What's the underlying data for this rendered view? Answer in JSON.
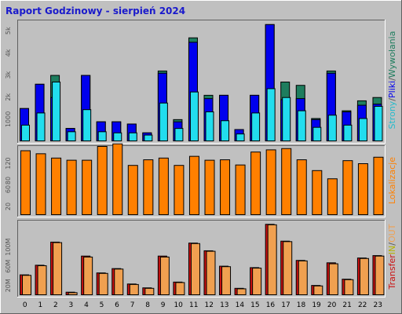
{
  "window": {
    "title": "Raport Godzinowy -   sierpień 2024"
  },
  "colors": {
    "background": "#c0c0c0",
    "hits": "#1e7d5e",
    "files": "#0000ee",
    "pages": "#22ddee",
    "visits": "#ff8000",
    "kbin": "#cc1111",
    "kbout": "#f0a050",
    "side_sep": "#555555"
  },
  "chart_data": [
    {
      "type": "bar",
      "name": "strony-pliki-wywolania",
      "categories": [
        "0",
        "1",
        "2",
        "3",
        "4",
        "5",
        "6",
        "7",
        "8",
        "9",
        "10",
        "11",
        "12",
        "13",
        "14",
        "15",
        "16",
        "17",
        "18",
        "19",
        "20",
        "21",
        "22",
        "23"
      ],
      "ylim": [
        0,
        5400
      ],
      "y_ticks": [
        "1000",
        "2k",
        "3k",
        "4k",
        "5k"
      ],
      "y_tick_values": [
        1000,
        2000,
        3000,
        4000,
        5000
      ],
      "side_label": [
        {
          "text": "Strony",
          "color": "#22bbcc"
        },
        {
          "text": "/",
          "color": "#555555"
        },
        {
          "text": "Pliki",
          "color": "#0000ee"
        },
        {
          "text": "/",
          "color": "#555555"
        },
        {
          "text": "Wywołania",
          "color": "#1e7d5e"
        }
      ],
      "series": [
        {
          "key": "hits",
          "values": [
            1500,
            2600,
            3000,
            600,
            3000,
            900,
            900,
            800,
            400,
            3200,
            1000,
            4700,
            2100,
            2100,
            550,
            2100,
            5300,
            2700,
            2550,
            1050,
            3200,
            1400,
            1850,
            2000
          ]
        },
        {
          "key": "files",
          "values": [
            1500,
            2600,
            2000,
            600,
            3000,
            900,
            900,
            800,
            400,
            3100,
            900,
            4500,
            1950,
            2100,
            550,
            2100,
            5300,
            1900,
            1950,
            1000,
            3100,
            1350,
            1650,
            1700
          ]
        },
        {
          "key": "pages",
          "values": [
            750,
            1300,
            2700,
            450,
            1450,
            450,
            400,
            400,
            300,
            1750,
            600,
            2250,
            1350,
            950,
            350,
            1300,
            2400,
            2000,
            1400,
            650,
            1200,
            750,
            1050,
            1600
          ]
        }
      ]
    },
    {
      "type": "bar",
      "name": "lokalizacje",
      "categories": [
        "0",
        "1",
        "2",
        "3",
        "4",
        "5",
        "6",
        "7",
        "8",
        "9",
        "10",
        "11",
        "12",
        "13",
        "14",
        "15",
        "16",
        "17",
        "18",
        "19",
        "20",
        "21",
        "22",
        "23"
      ],
      "ylim": [
        0,
        160
      ],
      "y_ticks": [
        "20",
        "60",
        "80",
        "120"
      ],
      "y_tick_values": [
        20,
        60,
        80,
        120
      ],
      "side_label": [
        {
          "text": "Lokalizacje",
          "color": "#ff8000"
        }
      ],
      "series": [
        {
          "key": "visits",
          "values": [
            150,
            143,
            133,
            128,
            128,
            160,
            166,
            116,
            129,
            133,
            116,
            137,
            128,
            129,
            117,
            147,
            152,
            155,
            129,
            104,
            85,
            127,
            120,
            135
          ]
        }
      ]
    },
    {
      "type": "bar",
      "name": "transfer",
      "categories": [
        "0",
        "1",
        "2",
        "3",
        "4",
        "5",
        "6",
        "7",
        "8",
        "9",
        "10",
        "11",
        "12",
        "13",
        "14",
        "15",
        "16",
        "17",
        "18",
        "19",
        "20",
        "21",
        "22",
        "23"
      ],
      "ylim": [
        0,
        150
      ],
      "y_ticks": [
        "20M",
        "60M",
        "100M"
      ],
      "y_tick_values": [
        20,
        60,
        100
      ],
      "side_label": [
        {
          "text": "Transfer",
          "color": "#cc1111"
        },
        {
          "text": "IN",
          "color": "#b4b400"
        },
        {
          "text": "/",
          "color": "#555555"
        },
        {
          "text": "OUT",
          "color": "#f0a050"
        }
      ],
      "series": [
        {
          "key": "kbin",
          "values": [
            43,
            63,
            111,
            7,
            82,
            47,
            56,
            24,
            16,
            82,
            28,
            109,
            93,
            61,
            15,
            58,
            148,
            113,
            73,
            21,
            68,
            34,
            78,
            83
          ]
        },
        {
          "key": "kbout",
          "values": [
            42,
            62,
            110,
            6,
            80,
            46,
            55,
            23,
            15,
            80,
            27,
            108,
            92,
            60,
            14,
            57,
            147,
            112,
            72,
            20,
            66,
            33,
            77,
            82
          ]
        }
      ]
    }
  ]
}
